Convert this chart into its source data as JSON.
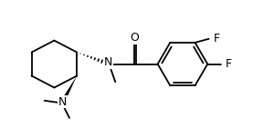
{
  "bg_color": "#ffffff",
  "line_color": "#000000",
  "lw": 1.3,
  "fs": 8.5,
  "fig_width": 2.88,
  "fig_height": 1.52,
  "dpi": 100,
  "xlim": [
    0.0,
    10.5
  ],
  "ylim": [
    0.5,
    5.5
  ]
}
